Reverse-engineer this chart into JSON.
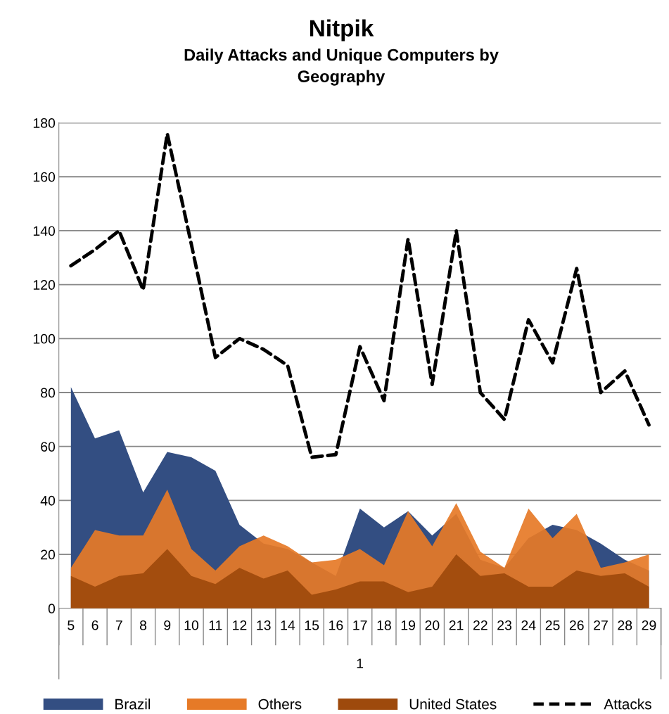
{
  "chart_data": {
    "type": "area",
    "title": "Nitpik",
    "subtitle": "Daily Attacks and Unique Computers by\nGeography",
    "xlabel": "1",
    "categories": [
      "5",
      "6",
      "7",
      "8",
      "9",
      "10",
      "11",
      "12",
      "13",
      "14",
      "15",
      "16",
      "17",
      "18",
      "19",
      "20",
      "21",
      "22",
      "23",
      "24",
      "25",
      "26",
      "27",
      "28",
      "29"
    ],
    "series": [
      {
        "name": "Brazil",
        "color": "#334e82",
        "values": [
          82,
          63,
          66,
          43,
          58,
          56,
          51,
          31,
          24,
          22,
          17,
          12,
          37,
          30,
          36,
          27,
          35,
          18,
          15,
          26,
          31,
          29,
          24,
          18,
          14
        ]
      },
      {
        "name": "Others",
        "color": "#e67a27",
        "values": [
          15,
          29,
          27,
          27,
          44,
          22,
          14,
          23,
          27,
          23,
          17,
          18,
          22,
          16,
          36,
          23,
          39,
          21,
          15,
          37,
          26,
          35,
          15,
          17,
          20
        ]
      },
      {
        "name": "United States",
        "color": "#9e4a0c",
        "values": [
          12,
          8,
          12,
          13,
          22,
          12,
          9,
          15,
          11,
          14,
          5,
          7,
          10,
          10,
          6,
          8,
          20,
          12,
          13,
          8,
          8,
          14,
          12,
          13,
          8
        ]
      },
      {
        "name": "Attacks",
        "type": "line",
        "color": "#000000",
        "line_style": "dashed",
        "values": [
          127,
          133,
          140,
          118,
          176,
          135,
          93,
          100,
          96,
          90,
          56,
          57,
          97,
          77,
          137,
          83,
          140,
          80,
          70,
          107,
          91,
          126,
          80,
          88,
          68
        ]
      }
    ],
    "ylim": [
      0,
      180
    ],
    "yticks": [
      0,
      20,
      40,
      60,
      80,
      100,
      120,
      140,
      160,
      180
    ],
    "grid": "y",
    "legend": "bottom"
  }
}
